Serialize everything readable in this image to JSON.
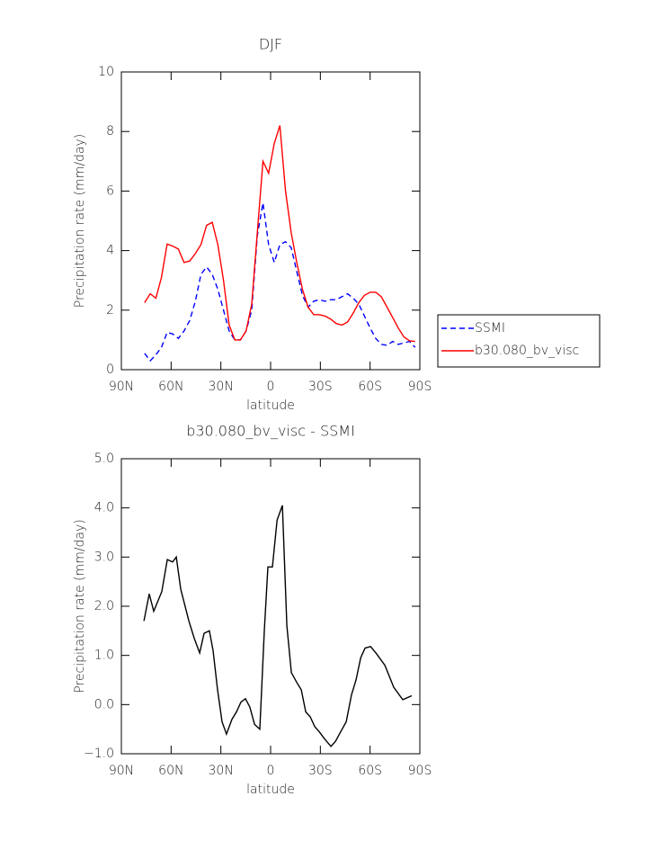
{
  "chart_data": [
    {
      "type": "line",
      "title": "DJF",
      "xlabel": "latitude",
      "ylabel": "Precipitation rate (mm/day)",
      "x": [
        76,
        72.6,
        69.2,
        65.8,
        62.4,
        59,
        55.6,
        52.2,
        48.8,
        45.4,
        42,
        38.6,
        35.2,
        31.8,
        28.4,
        25,
        21.6,
        18.2,
        14.8,
        11.4,
        8,
        4.6,
        1.2,
        -2.2,
        -5.6,
        -9,
        -12.4,
        -15.8,
        -19.2,
        -22.6,
        -26,
        -29.4,
        -32.8,
        -36.2,
        -39.6,
        -43,
        -46.4,
        -49.8,
        -53.2,
        -56.6,
        -60,
        -63.4,
        -66.8,
        -70.2,
        -73.6,
        -77,
        -80.4,
        -83.8,
        -87.2
      ],
      "series": [
        {
          "name": "SSMI",
          "color": "#0000ff",
          "dashed": true,
          "values": [
            0.55,
            0.3,
            0.5,
            0.75,
            1.25,
            1.2,
            1.05,
            1.3,
            1.65,
            2.3,
            3.2,
            3.45,
            3.2,
            2.7,
            2.0,
            1.3,
            1.0,
            1.0,
            1.3,
            2.0,
            4.5,
            5.6,
            4.2,
            3.6,
            4.2,
            4.3,
            4.1,
            3.3,
            2.5,
            2.1,
            2.3,
            2.35,
            2.3,
            2.35,
            2.35,
            2.45,
            2.55,
            2.4,
            2.2,
            1.8,
            1.4,
            1.05,
            0.85,
            0.82,
            0.95,
            0.85,
            0.9,
            0.95,
            0.75
          ]
        },
        {
          "name": "b30.080_bv_visc",
          "color": "#ff0000",
          "dashed": false,
          "values": [
            2.25,
            2.55,
            2.4,
            3.1,
            4.22,
            4.15,
            4.05,
            3.6,
            3.65,
            3.9,
            4.2,
            4.85,
            4.95,
            4.2,
            3.0,
            1.5,
            1.0,
            1.0,
            1.3,
            2.2,
            4.6,
            7.0,
            6.6,
            7.6,
            8.2,
            6.0,
            4.6,
            3.6,
            2.7,
            2.1,
            1.85,
            1.85,
            1.8,
            1.7,
            1.55,
            1.5,
            1.6,
            1.9,
            2.25,
            2.5,
            2.6,
            2.6,
            2.45,
            2.1,
            1.75,
            1.4,
            1.1,
            0.97,
            0.95
          ]
        }
      ],
      "xlim": [
        90,
        -90
      ],
      "xticks": [
        {
          "value": 90,
          "label": "90N"
        },
        {
          "value": 60,
          "label": "60N"
        },
        {
          "value": 30,
          "label": "30N"
        },
        0,
        {
          "value": -30,
          "label": "30S"
        },
        {
          "value": -60,
          "label": "60S"
        },
        {
          "value": -90,
          "label": "90S"
        }
      ],
      "ylim": [
        0,
        10
      ],
      "yticks": [
        0,
        2,
        4,
        6,
        8,
        10
      ],
      "legend": "right"
    },
    {
      "type": "line",
      "title": "b30.080_bv_visc - SSMI",
      "xlabel": "latitude",
      "ylabel": "Precipitation rate (mm/day)",
      "x": [
        76.4,
        73.2,
        70.5,
        65.6,
        62.3,
        59.1,
        56.9,
        54.2,
        49.3,
        46.1,
        42.8,
        40.1,
        36.9,
        34.7,
        32,
        29.3,
        26.6,
        23.3,
        20.6,
        17.9,
        15.2,
        12.5,
        9.7,
        6.5,
        3.8,
        1.6,
        -1.1,
        -3.9,
        -7.1,
        -9.8,
        -12.5,
        -15.8,
        -18.5,
        -21.2,
        -23.9,
        -26.6,
        -29.3,
        -32.6,
        -36.4,
        -39.1,
        -42.3,
        -45.6,
        -48.8,
        -51.5,
        -54.3,
        -57,
        -60.3,
        -63.5,
        -68.9,
        -74.3,
        -79.7,
        -85.1
      ],
      "series": [
        {
          "color": "#000000",
          "dashed": false,
          "values": [
            1.7,
            2.25,
            1.9,
            2.3,
            2.95,
            2.9,
            3.0,
            2.35,
            1.7,
            1.35,
            1.05,
            1.45,
            1.5,
            1.1,
            0.3,
            -0.35,
            -0.6,
            -0.3,
            -0.15,
            0.05,
            0.12,
            -0.05,
            -0.4,
            -0.5,
            1.5,
            2.8,
            2.8,
            3.75,
            4.05,
            1.6,
            0.65,
            0.45,
            0.3,
            -0.15,
            -0.25,
            -0.45,
            -0.55,
            -0.7,
            -0.85,
            -0.75,
            -0.55,
            -0.35,
            0.2,
            0.5,
            0.95,
            1.15,
            1.18,
            1.05,
            0.8,
            0.35,
            0.1,
            0.18
          ]
        }
      ],
      "xlim": [
        90,
        -90
      ],
      "xticks": [
        {
          "value": 90,
          "label": "90N"
        },
        {
          "value": 60,
          "label": "60N"
        },
        {
          "value": 30,
          "label": "30N"
        },
        0,
        {
          "value": -30,
          "label": "30S"
        },
        {
          "value": -60,
          "label": "60S"
        },
        {
          "value": -90,
          "label": "90S"
        }
      ],
      "ylim": [
        -1,
        5
      ],
      "yticks": [
        {
          "value": -1,
          "label": "−1.0"
        },
        {
          "value": 0,
          "label": "0.0"
        },
        {
          "value": 1,
          "label": "1.0"
        },
        {
          "value": 2,
          "label": "2.0"
        },
        {
          "value": 3,
          "label": "3.0"
        },
        {
          "value": 4,
          "label": "4.0"
        },
        {
          "value": 5,
          "label": "5.0"
        }
      ]
    }
  ]
}
